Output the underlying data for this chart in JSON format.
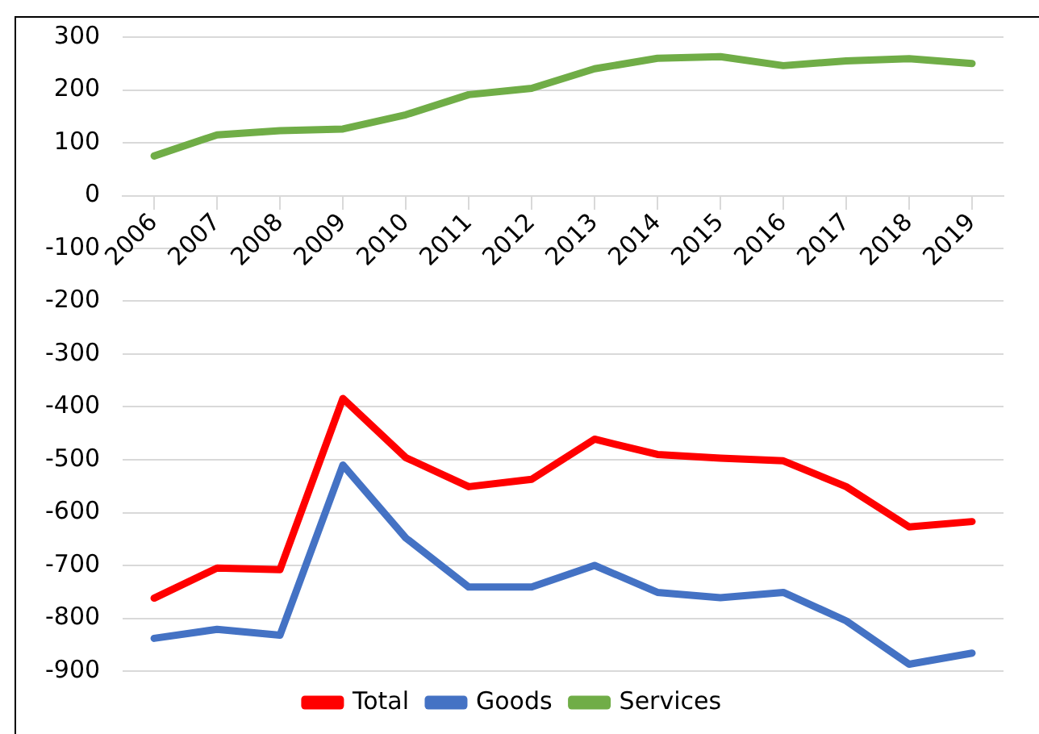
{
  "chart_data": {
    "type": "line",
    "categories": [
      "2006",
      "2007",
      "2008",
      "2009",
      "2010",
      "2011",
      "2012",
      "2013",
      "2014",
      "2015",
      "2016",
      "2017",
      "2018",
      "2019"
    ],
    "series": [
      {
        "name": "Total",
        "color": "#ff0000",
        "values": [
          -762,
          -705,
          -708,
          -384,
          -496,
          -551,
          -537,
          -461,
          -490,
          -497,
          -502,
          -551,
          -627,
          -617
        ]
      },
      {
        "name": "Goods",
        "color": "#4472c4",
        "values": [
          -838,
          -821,
          -832,
          -510,
          -648,
          -741,
          -741,
          -700,
          -751,
          -761,
          -751,
          -805,
          -887,
          -866
        ]
      },
      {
        "name": "Services",
        "color": "#70ad47",
        "values": [
          75,
          115,
          123,
          126,
          153,
          191,
          203,
          240,
          260,
          263,
          246,
          255,
          259,
          250
        ]
      }
    ],
    "ylim": [
      -900,
      300
    ],
    "yticks": [
      -900,
      -800,
      -700,
      -600,
      -500,
      -400,
      -300,
      -200,
      -100,
      0,
      100,
      200,
      300
    ],
    "grid": "y",
    "legend": "bottom",
    "marker": "none",
    "line_style": "solid"
  }
}
